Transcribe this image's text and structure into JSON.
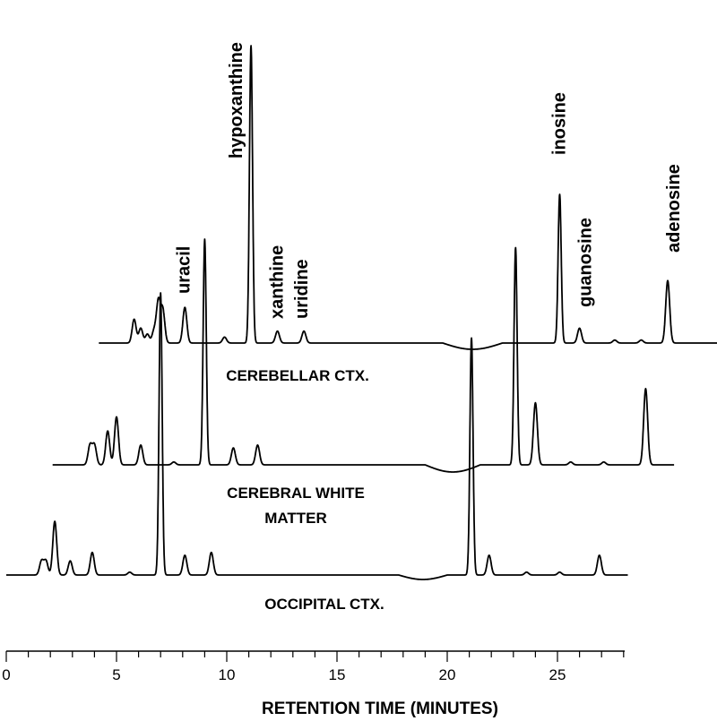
{
  "chart_data": {
    "type": "line",
    "title": "",
    "xlabel": "RETENTION TIME (MINUTES)",
    "ylabel": "",
    "xlim": [
      0,
      28
    ],
    "x_ticks": [
      0,
      5,
      10,
      15,
      20,
      25
    ],
    "grid": false,
    "series": [
      {
        "name": "CEREBELLAR CTX.",
        "x_offset_min": 4.2,
        "baseline": 0,
        "peaks": [
          {
            "x": 5.8,
            "h": 8
          },
          {
            "x": 6.1,
            "h": 5
          },
          {
            "x": 6.4,
            "h": 3
          },
          {
            "x": 6.7,
            "h": 4
          },
          {
            "x": 6.9,
            "h": 14
          },
          {
            "x": 7.1,
            "h": 11
          },
          {
            "x": 8.1,
            "h": 12
          },
          {
            "x": 9.9,
            "h": 2
          },
          {
            "x": 11.1,
            "h": 100
          },
          {
            "x": 12.3,
            "h": 4
          },
          {
            "x": 13.5,
            "h": 4
          },
          {
            "x": 25.1,
            "h": 50
          },
          {
            "x": 26.0,
            "h": 5
          },
          {
            "x": 27.6,
            "h": 1
          },
          {
            "x": 28.8,
            "h": 1
          },
          {
            "x": 30.0,
            "h": 21
          }
        ],
        "peak_labels": [
          {
            "x": 8.1,
            "label": "uracil"
          },
          {
            "x": 11.1,
            "label": "hypoxanthine"
          },
          {
            "x": 12.3,
            "label": "xanthine"
          },
          {
            "x": 13.5,
            "label": "uridine"
          },
          {
            "x": 25.1,
            "label": "inosine"
          },
          {
            "x": 26.0,
            "label": "guanosine"
          },
          {
            "x": 30.0,
            "label": "adenosine"
          }
        ]
      },
      {
        "name": "CEREBRAL WHITE MATTER",
        "x_offset_min": 2.1,
        "baseline": 0,
        "peaks": [
          {
            "x": 3.8,
            "h": 7
          },
          {
            "x": 4.0,
            "h": 7
          },
          {
            "x": 4.6,
            "h": 12
          },
          {
            "x": 5.0,
            "h": 17
          },
          {
            "x": 6.1,
            "h": 7
          },
          {
            "x": 7.6,
            "h": 1
          },
          {
            "x": 9.0,
            "h": 80
          },
          {
            "x": 10.3,
            "h": 6
          },
          {
            "x": 11.4,
            "h": 7
          },
          {
            "x": 23.1,
            "h": 77
          },
          {
            "x": 24.0,
            "h": 22
          },
          {
            "x": 25.6,
            "h": 1
          },
          {
            "x": 27.1,
            "h": 1
          },
          {
            "x": 29.0,
            "h": 27
          }
        ]
      },
      {
        "name": "OCCIPITAL CTX.",
        "x_offset_min": 0,
        "baseline": 0,
        "peaks": [
          {
            "x": 1.6,
            "h": 5
          },
          {
            "x": 1.8,
            "h": 5
          },
          {
            "x": 2.2,
            "h": 19
          },
          {
            "x": 2.9,
            "h": 5
          },
          {
            "x": 3.9,
            "h": 8
          },
          {
            "x": 5.6,
            "h": 1
          },
          {
            "x": 7.0,
            "h": 100
          },
          {
            "x": 8.1,
            "h": 7
          },
          {
            "x": 9.3,
            "h": 8
          },
          {
            "x": 21.1,
            "h": 84
          },
          {
            "x": 21.9,
            "h": 7
          },
          {
            "x": 23.6,
            "h": 1
          },
          {
            "x": 25.1,
            "h": 1
          },
          {
            "x": 26.9,
            "h": 7
          }
        ]
      }
    ]
  }
}
